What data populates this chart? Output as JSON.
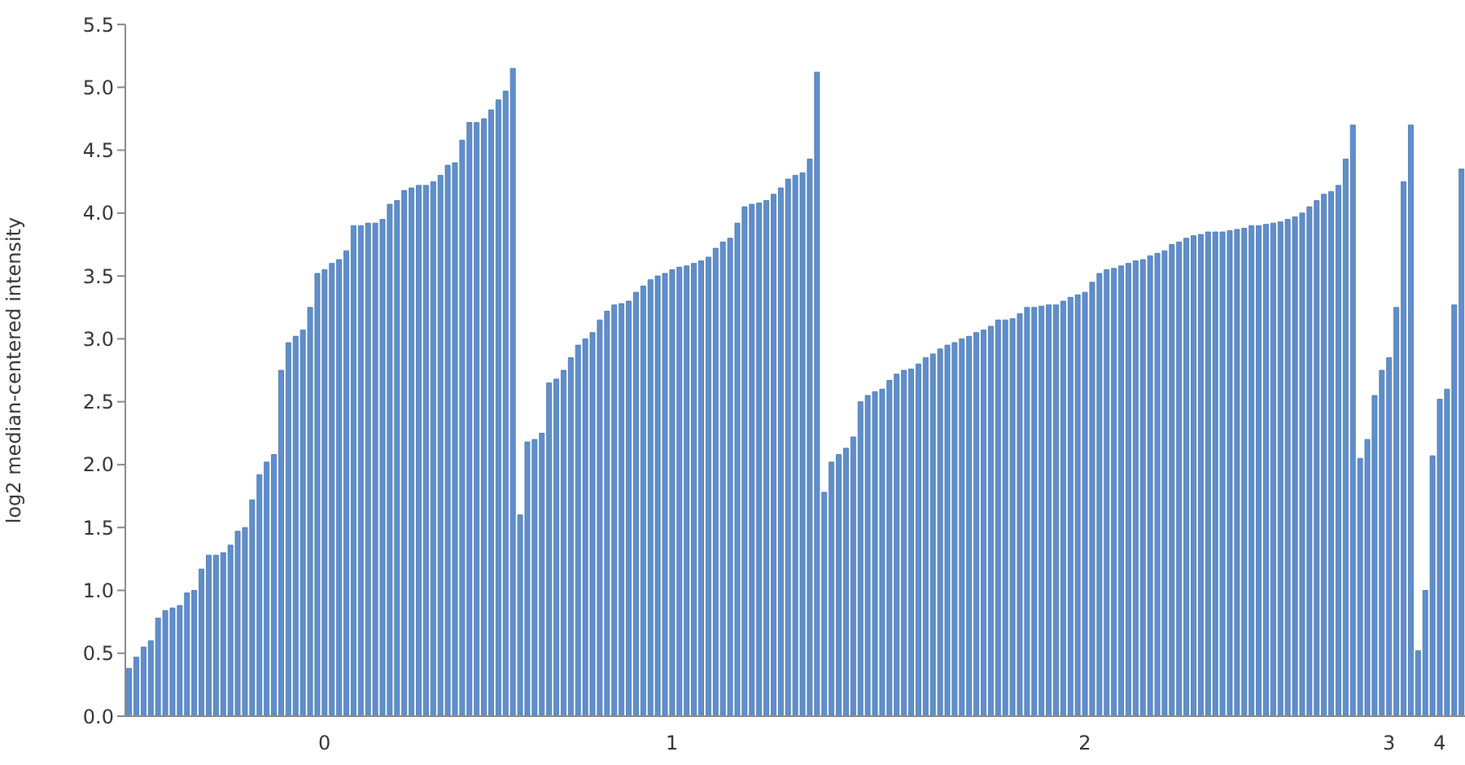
{
  "chart_data": {
    "type": "bar",
    "ylabel": "log2 median-centered intensity",
    "categories": [
      null,
      null,
      null,
      null,
      null,
      null,
      null,
      null,
      null,
      null,
      null,
      null,
      null,
      null,
      null,
      null,
      null,
      null,
      null,
      null,
      null,
      null,
      null,
      null,
      null,
      null,
      null,
      "0",
      null,
      null,
      null,
      null,
      null,
      null,
      null,
      null,
      null,
      null,
      null,
      null,
      null,
      null,
      null,
      null,
      null,
      null,
      null,
      null,
      null,
      null,
      null,
      null,
      null,
      null,
      null,
      null,
      null,
      null,
      null,
      null,
      null,
      null,
      null,
      null,
      null,
      null,
      null,
      null,
      null,
      null,
      null,
      null,
      null,
      null,
      null,
      "1",
      null,
      null,
      null,
      null,
      null,
      null,
      null,
      null,
      null,
      null,
      null,
      null,
      null,
      null,
      null,
      null,
      null,
      null,
      null,
      null,
      null,
      null,
      null,
      null,
      null,
      null,
      null,
      null,
      null,
      null,
      null,
      null,
      null,
      null,
      null,
      null,
      null,
      null,
      null,
      null,
      null,
      null,
      null,
      null,
      null,
      null,
      null,
      null,
      null,
      null,
      null,
      null,
      null,
      null,
      null,
      null,
      "2",
      null,
      null,
      null,
      null,
      null,
      null,
      null,
      null,
      null,
      null,
      null,
      null,
      null,
      null,
      null,
      null,
      null,
      null,
      null,
      null,
      null,
      null,
      null,
      null,
      null,
      null,
      null,
      null,
      null,
      null,
      null,
      null,
      null,
      null,
      null,
      null,
      null,
      null,
      null,
      null,
      null,
      "3",
      null,
      null,
      null,
      null,
      null,
      null,
      "4",
      null,
      null,
      null
    ],
    "values": [
      0.38,
      0.47,
      0.55,
      0.6,
      0.78,
      0.84,
      0.86,
      0.88,
      0.98,
      1.0,
      1.17,
      1.28,
      1.28,
      1.3,
      1.36,
      1.47,
      1.5,
      1.72,
      1.92,
      2.02,
      2.08,
      2.75,
      2.97,
      3.02,
      3.07,
      3.25,
      3.52,
      3.55,
      3.6,
      3.63,
      3.7,
      3.9,
      3.9,
      3.92,
      3.92,
      3.95,
      4.07,
      4.1,
      4.18,
      4.2,
      4.22,
      4.22,
      4.25,
      4.3,
      4.38,
      4.4,
      4.58,
      4.72,
      4.72,
      4.75,
      4.82,
      4.9,
      4.97,
      5.15,
      1.6,
      2.18,
      2.2,
      2.25,
      2.65,
      2.68,
      2.75,
      2.85,
      2.95,
      3.0,
      3.05,
      3.15,
      3.22,
      3.27,
      3.28,
      3.3,
      3.37,
      3.42,
      3.47,
      3.5,
      3.52,
      3.55,
      3.57,
      3.58,
      3.6,
      3.62,
      3.65,
      3.72,
      3.77,
      3.8,
      3.92,
      4.05,
      4.07,
      4.08,
      4.1,
      4.15,
      4.2,
      4.27,
      4.3,
      4.32,
      4.43,
      5.12,
      1.78,
      2.02,
      2.08,
      2.13,
      2.22,
      2.5,
      2.55,
      2.58,
      2.6,
      2.67,
      2.72,
      2.75,
      2.76,
      2.8,
      2.85,
      2.88,
      2.92,
      2.95,
      2.97,
      3.0,
      3.02,
      3.05,
      3.07,
      3.1,
      3.15,
      3.15,
      3.16,
      3.2,
      3.25,
      3.25,
      3.26,
      3.27,
      3.27,
      3.3,
      3.33,
      3.35,
      3.37,
      3.45,
      3.52,
      3.55,
      3.56,
      3.58,
      3.6,
      3.62,
      3.63,
      3.66,
      3.68,
      3.7,
      3.75,
      3.77,
      3.8,
      3.82,
      3.83,
      3.85,
      3.85,
      3.85,
      3.86,
      3.87,
      3.88,
      3.9,
      3.9,
      3.91,
      3.92,
      3.93,
      3.95,
      3.97,
      4.0,
      4.05,
      4.1,
      4.15,
      4.17,
      4.22,
      4.43,
      4.7,
      2.05,
      2.2,
      2.55,
      2.75,
      2.85,
      3.25,
      4.25,
      4.7,
      0.52,
      1.0,
      2.07,
      2.52,
      2.6,
      3.27,
      4.35
    ],
    "color": "#5f8fcc",
    "ylim": [
      0,
      5.5
    ],
    "yticks": [
      {
        "value": 0,
        "label": "0.0"
      },
      0.5,
      {
        "value": 1,
        "label": "1.0"
      },
      1.5,
      {
        "value": 2,
        "label": "2.0"
      },
      2.5,
      {
        "value": 3,
        "label": "3.0"
      },
      3.5,
      {
        "value": 4,
        "label": "4.0"
      },
      4.5,
      {
        "value": 5,
        "label": "5.0"
      },
      5.5
    ]
  }
}
